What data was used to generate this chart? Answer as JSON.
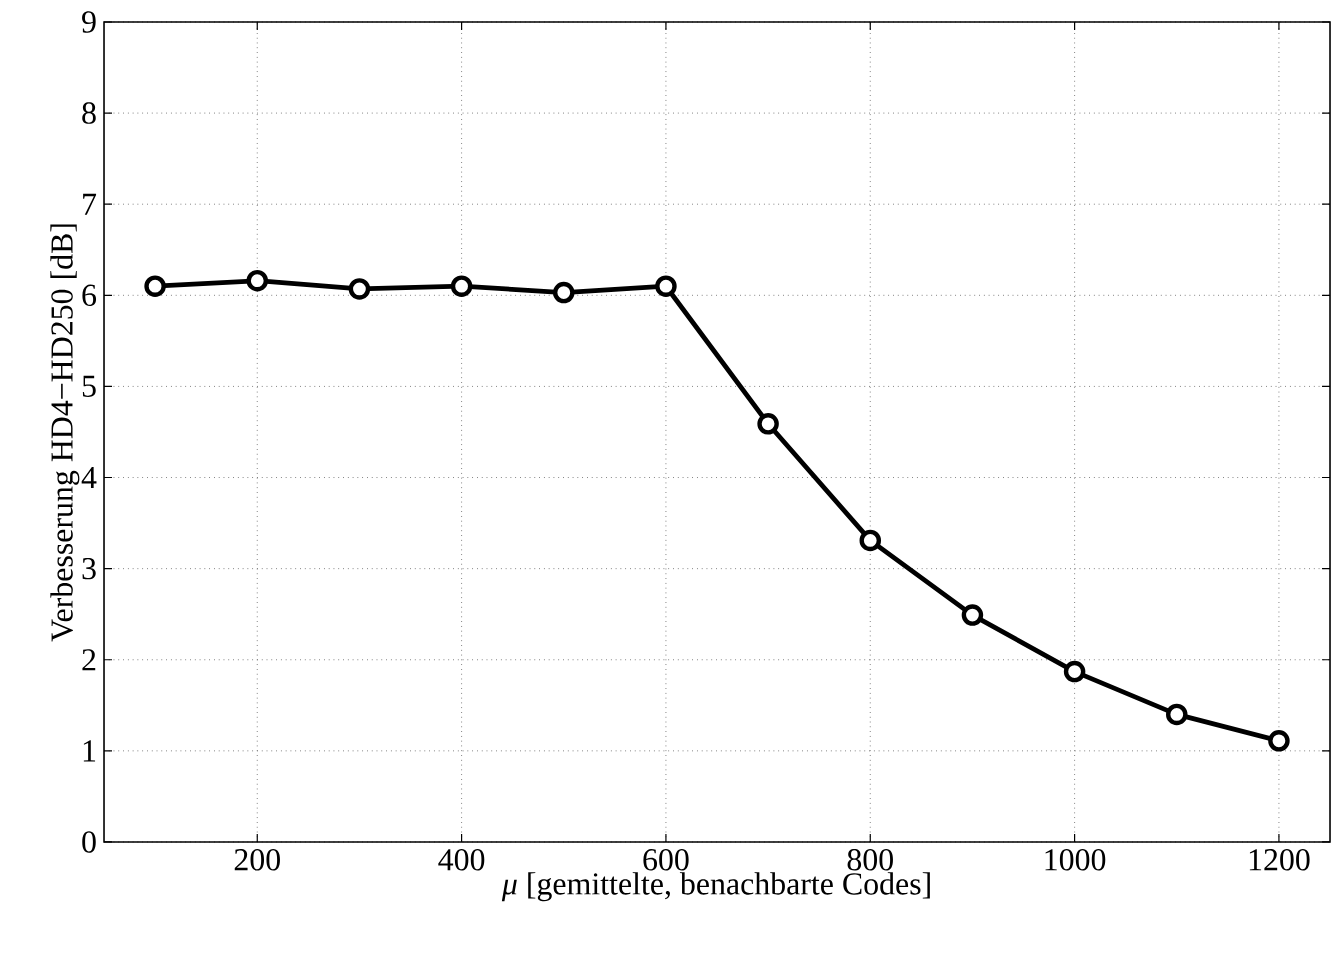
{
  "chart_data": {
    "type": "line",
    "xlabel": "*μ* [gemittelte, benachbarte Codes]",
    "ylabel": "Verbesserung HD4−HD250 [dB]",
    "x": [
      100,
      200,
      300,
      400,
      500,
      600,
      700,
      800,
      900,
      1000,
      1100,
      1200
    ],
    "series": [
      {
        "color": "#000000",
        "values": [
          6.1,
          6.16,
          6.07,
          6.1,
          6.03,
          6.1,
          4.59,
          3.31,
          2.49,
          1.87,
          1.4,
          1.11
        ]
      }
    ],
    "xlim": [
      50,
      1250
    ],
    "ylim": [
      0,
      9
    ],
    "xticks": [
      200,
      400,
      600,
      800,
      1000,
      1200
    ],
    "yticks": [
      0,
      1,
      2,
      3,
      4,
      5,
      6,
      7,
      8,
      9
    ],
    "grid": true,
    "marker": "circle",
    "line_style": "solid"
  }
}
